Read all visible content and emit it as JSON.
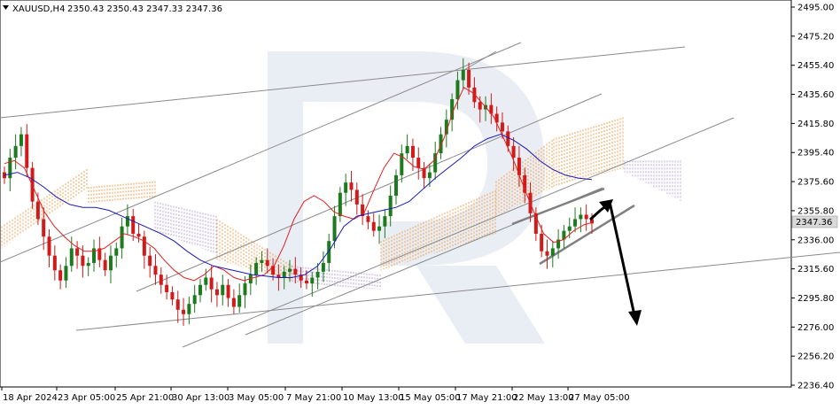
{
  "header": {
    "symbol": "XAUUSD,H4",
    "ohlc": "2350.43 2350.43 2347.33 2347.36"
  },
  "chart_data": {
    "type": "candlestick",
    "instrument": "XAUUSD",
    "timeframe": "H4",
    "last_price": "2347.36",
    "ylim": [
      2236.4,
      2495.0
    ],
    "y_ticks": [
      "2495.00",
      "2475.20",
      "2455.40",
      "2435.60",
      "2415.80",
      "2395.40",
      "2375.60",
      "2355.80",
      "2336.00",
      "2315.60",
      "2295.80",
      "2276.00",
      "2256.20",
      "2236.40"
    ],
    "x_ticks": [
      "18 Apr 2024",
      "23 Apr 05:00",
      "25 Apr 21:00",
      "30 Apr 13:00",
      "3 May 05:00",
      "7 May 21:00",
      "10 May 13:00",
      "15 May 05:00",
      "17 May 21:00",
      "22 May 13:00",
      "27 May 05:00"
    ],
    "close_path": [
      2378,
      2392,
      2400,
      2408,
      2385,
      2362,
      2350,
      2338,
      2325,
      2315,
      2308,
      2318,
      2330,
      2325,
      2318,
      2320,
      2330,
      2322,
      2315,
      2325,
      2330,
      2345,
      2352,
      2340,
      2338,
      2325,
      2318,
      2312,
      2305,
      2300,
      2295,
      2288,
      2285,
      2292,
      2298,
      2305,
      2310,
      2302,
      2298,
      2305,
      2296,
      2290,
      2298,
      2306,
      2312,
      2320,
      2322,
      2318,
      2312,
      2310,
      2314,
      2316,
      2312,
      2308,
      2306,
      2310,
      2314,
      2320,
      2335,
      2352,
      2368,
      2375,
      2370,
      2360,
      2352,
      2348,
      2342,
      2345,
      2352,
      2366,
      2380,
      2395,
      2400,
      2392,
      2385,
      2378,
      2382,
      2395,
      2408,
      2418,
      2432,
      2445,
      2452,
      2440,
      2430,
      2425,
      2428,
      2422,
      2416,
      2410,
      2400,
      2392,
      2380,
      2368,
      2354,
      2340,
      2328,
      2325,
      2330,
      2336,
      2342,
      2345,
      2350,
      2353,
      2350,
      2347
    ],
    "tenkan_path": [
      2388,
      2390,
      2385,
      2370,
      2355,
      2345,
      2338,
      2332,
      2328,
      2328,
      2330,
      2335,
      2340,
      2338,
      2335,
      2330,
      2322,
      2315,
      2310,
      2308,
      2312,
      2318,
      2315,
      2310,
      2308,
      2310,
      2312,
      2318,
      2332,
      2350,
      2362,
      2366,
      2362,
      2355,
      2352,
      2350,
      2354,
      2370,
      2385,
      2395,
      2392,
      2386,
      2384,
      2390,
      2405,
      2425,
      2440,
      2436,
      2428,
      2420,
      2405,
      2390,
      2372,
      2355,
      2340,
      2334,
      2336,
      2342,
      2346,
      2348
    ],
    "kijun_path": [
      2380,
      2382,
      2378,
      2372,
      2365,
      2360,
      2358,
      2358,
      2356,
      2352,
      2348,
      2344,
      2340,
      2335,
      2328,
      2322,
      2318,
      2316,
      2314,
      2312,
      2311,
      2310,
      2310,
      2312,
      2318,
      2330,
      2345,
      2352,
      2354,
      2356,
      2358,
      2362,
      2370,
      2378,
      2385,
      2392,
      2400,
      2405,
      2408,
      2404,
      2398,
      2390,
      2384,
      2380,
      2378,
      2377
    ],
    "annotations": {
      "resistance_lines": 5,
      "channel": "rising",
      "forecast": "up then down",
      "target": 2276.0
    }
  }
}
